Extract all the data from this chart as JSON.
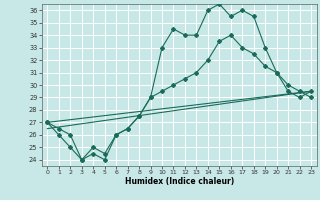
{
  "title": "",
  "xlabel": "Humidex (Indice chaleur)",
  "bg_color": "#c8e8e8",
  "grid_color": "#a0c8c8",
  "line_color": "#1a6b5a",
  "xlim": [
    -0.5,
    23.5
  ],
  "ylim": [
    23.5,
    36.5
  ],
  "xticks": [
    0,
    1,
    2,
    3,
    4,
    5,
    6,
    7,
    8,
    9,
    10,
    11,
    12,
    13,
    14,
    15,
    16,
    17,
    18,
    19,
    20,
    21,
    22,
    23
  ],
  "yticks": [
    24,
    25,
    26,
    27,
    28,
    29,
    30,
    31,
    32,
    33,
    34,
    35,
    36
  ],
  "series1_x": [
    0,
    1,
    2,
    3,
    4,
    5,
    6,
    7,
    8,
    9,
    10,
    11,
    12,
    13,
    14,
    15,
    16,
    17,
    18,
    19,
    20,
    21,
    22,
    23
  ],
  "series1_y": [
    27,
    26,
    25,
    24,
    24.5,
    24,
    26,
    26.5,
    27.5,
    29,
    33,
    34.5,
    34,
    34,
    36,
    36.5,
    35.5,
    36,
    35.5,
    33,
    31,
    29.5,
    29,
    29.5
  ],
  "series2_x": [
    0,
    23
  ],
  "series2_y": [
    26.5,
    29.5
  ],
  "series3_x": [
    0,
    23
  ],
  "series3_y": [
    27.0,
    29.5
  ],
  "series4_x": [
    0,
    1,
    2,
    3,
    4,
    5,
    6,
    7,
    8,
    9,
    10,
    11,
    12,
    13,
    14,
    15,
    16,
    17,
    18,
    19,
    20,
    21,
    22,
    23
  ],
  "series4_y": [
    27,
    26.5,
    26,
    24,
    25,
    24.5,
    26,
    26.5,
    27.5,
    29,
    29.5,
    30,
    30.5,
    31,
    32,
    33.5,
    34,
    33,
    32.5,
    31.5,
    31,
    30,
    29.5,
    29
  ]
}
